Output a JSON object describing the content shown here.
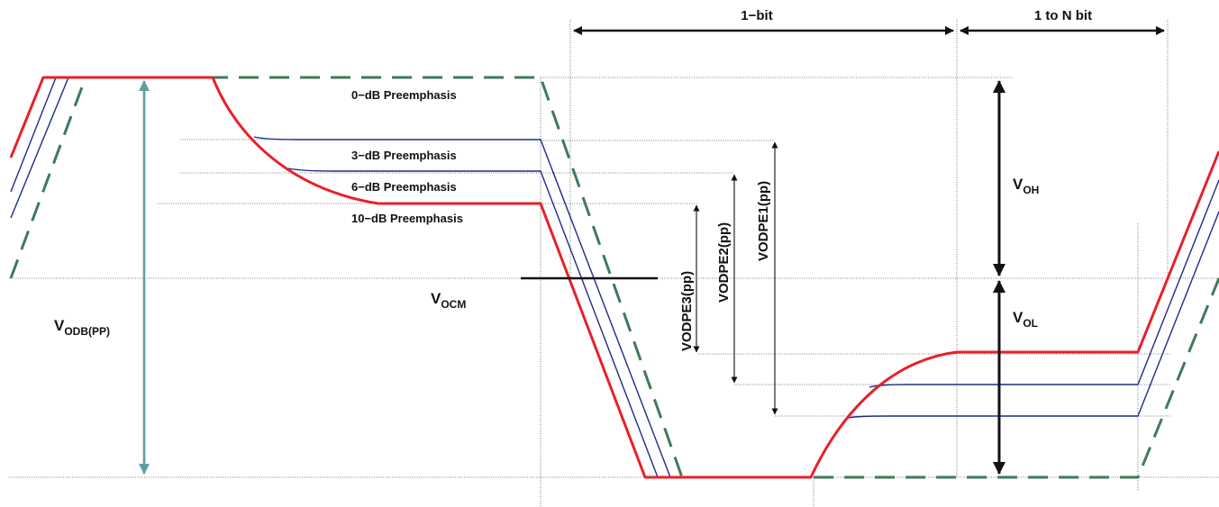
{
  "labels": {
    "one_bit": "1−bit",
    "one_to_n_bit": "1 to N bit",
    "pre0": "0−dB Preemphasis",
    "pre3": "3−dB Preemphasis",
    "pre6": "6−dB Preemphasis",
    "pre10": "10−dB Preemphasis",
    "voh_main": "V",
    "voh_sub": "OH",
    "vol_main": "V",
    "vol_sub": "OL",
    "vocm_main": "V",
    "vocm_sub": "OCM",
    "vodb_main": "V",
    "vodb_sub": "ODB(PP)",
    "vodpe1": "VODPE1(pp)",
    "vodpe2": "VODPE2(pp)",
    "vodpe3": "VODPE3(pp)"
  },
  "colors": {
    "red_trace": "#e8202a",
    "blue_trace": "#1f2a8a",
    "green_trace": "#3f7a5a",
    "teal_arrow": "#5f9ea0",
    "black": "#111111",
    "guide": "#555555"
  }
}
